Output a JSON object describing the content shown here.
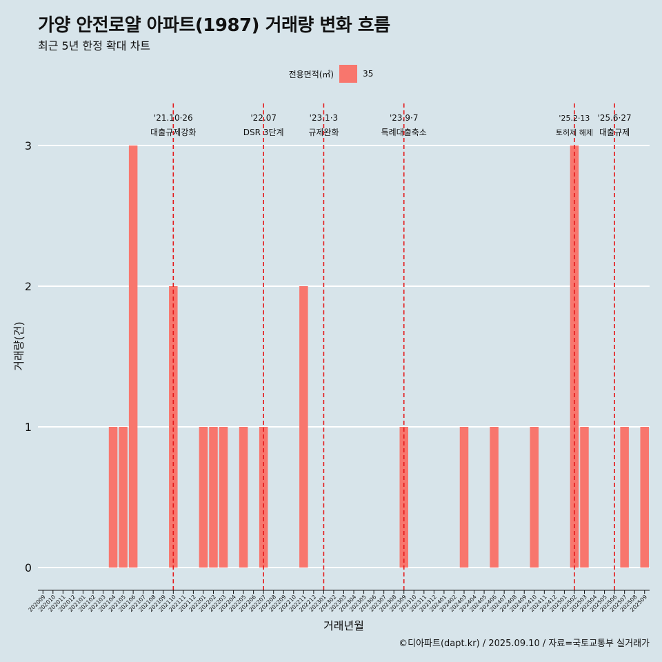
{
  "title": "가양 안전로얄 아파트(1987) 거래량 변화 흐름",
  "subtitle": "최근 5년 한정 확대 차트",
  "caption": "©디아파트(dapt.kr) / 2025.09.10 / 자료=국토교통부 실거래가",
  "legend": {
    "title": "전용면적(㎡)",
    "entry": "35"
  },
  "colors": {
    "bar": "#f8766d",
    "background": "#d7e4ea",
    "event_line": "#e41a1c",
    "grid": "#ffffff"
  },
  "chart_data": {
    "type": "bar",
    "xlabel": "거래년월",
    "ylabel": "거래량(건)",
    "ylim": [
      0,
      3
    ],
    "y_ticks": [
      0,
      1,
      2,
      3
    ],
    "grid": "horizontal",
    "legend_position": "top",
    "categories": [
      "202009",
      "202010",
      "202011",
      "202012",
      "202101",
      "202102",
      "202103",
      "202104",
      "202105",
      "202106",
      "202107",
      "202108",
      "202109",
      "202110",
      "202111",
      "202112",
      "202201",
      "202202",
      "202203",
      "202204",
      "202205",
      "202206",
      "202207",
      "202208",
      "202209",
      "202210",
      "202211",
      "202212",
      "202301",
      "202302",
      "202303",
      "202304",
      "202305",
      "202306",
      "202307",
      "202308",
      "202309",
      "202310",
      "202311",
      "202312",
      "202401",
      "202402",
      "202403",
      "202404",
      "202405",
      "202406",
      "202407",
      "202408",
      "202409",
      "202410",
      "202411",
      "202412",
      "202501",
      "202502",
      "202503",
      "202504",
      "202505",
      "202506",
      "202507",
      "202508",
      "202509"
    ],
    "series": [
      {
        "name": "35",
        "values": [
          0,
          0,
          0,
          0,
          0,
          0,
          0,
          1,
          1,
          3,
          0,
          0,
          0,
          2,
          0,
          0,
          1,
          1,
          1,
          0,
          1,
          0,
          1,
          0,
          0,
          0,
          2,
          0,
          0,
          0,
          0,
          0,
          0,
          0,
          0,
          0,
          1,
          0,
          0,
          0,
          0,
          0,
          1,
          0,
          0,
          1,
          0,
          0,
          0,
          1,
          0,
          0,
          0,
          3,
          1,
          0,
          0,
          0,
          1,
          0,
          1
        ]
      }
    ],
    "events": [
      {
        "date": "'21.10·26",
        "label": "대출규제강화",
        "month": "202110"
      },
      {
        "date": "'22.07",
        "label": "DSR 3단계",
        "month": "202207"
      },
      {
        "date": "'23.1·3",
        "label": "규제완화",
        "month": "202301"
      },
      {
        "date": "'23.9·7",
        "label": "특례대출축소",
        "month": "202309"
      },
      {
        "date": "'25.2·13",
        "label": "토허제 해제",
        "month": "202502"
      },
      {
        "date": "'25.6·27",
        "label": "대출규제",
        "month": "202506"
      }
    ]
  }
}
